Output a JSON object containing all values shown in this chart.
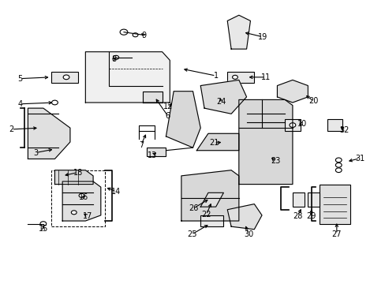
{
  "bg_color": "#ffffff",
  "line_color": "#000000",
  "figsize": [
    4.89,
    3.6
  ],
  "dpi": 100,
  "label_positions": {
    "1": [
      0.56,
      0.735,
      0.47,
      0.76
    ],
    "2": [
      0.027,
      0.545,
      0.1,
      0.55
    ],
    "3": [
      0.09,
      0.462,
      0.14,
      0.475
    ],
    "4": [
      0.05,
      0.635,
      0.14,
      0.64
    ],
    "5": [
      0.05,
      0.725,
      0.13,
      0.73
    ],
    "6": [
      0.435,
      0.592,
      0.4,
      0.66
    ],
    "7": [
      0.365,
      0.49,
      0.38,
      0.535
    ],
    "8": [
      0.295,
      0.795,
      0.3,
      0.8
    ],
    "9": [
      0.373,
      0.878,
      0.36,
      0.89
    ],
    "10": [
      0.785,
      0.565,
      0.77,
      0.56
    ],
    "11": [
      0.69,
      0.73,
      0.64,
      0.73
    ],
    "12": [
      0.435,
      0.625,
      0.45,
      0.64
    ],
    "13": [
      0.395,
      0.453,
      0.41,
      0.467
    ],
    "14": [
      0.3,
      0.325,
      0.27,
      0.34
    ],
    "15": [
      0.11,
      0.192,
      0.11,
      0.21
    ],
    "16": [
      0.215,
      0.305,
      0.22,
      0.31
    ],
    "17": [
      0.225,
      0.237,
      0.21,
      0.25
    ],
    "18": [
      0.2,
      0.392,
      0.16,
      0.38
    ],
    "19": [
      0.682,
      0.873,
      0.63,
      0.89
    ],
    "20": [
      0.815,
      0.645,
      0.79,
      0.67
    ],
    "21": [
      0.555,
      0.496,
      0.58,
      0.5
    ],
    "22": [
      0.535,
      0.242,
      0.55,
      0.29
    ],
    "23": [
      0.715,
      0.432,
      0.7,
      0.45
    ],
    "24": [
      0.573,
      0.643,
      0.57,
      0.665
    ],
    "25": [
      0.498,
      0.173,
      0.545,
      0.21
    ],
    "26": [
      0.502,
      0.265,
      0.545,
      0.3
    ],
    "27": [
      0.875,
      0.173,
      0.875,
      0.22
    ],
    "28": [
      0.773,
      0.237,
      0.785,
      0.27
    ],
    "29": [
      0.808,
      0.237,
      0.81,
      0.27
    ],
    "30": [
      0.646,
      0.172,
      0.635,
      0.21
    ],
    "31": [
      0.935,
      0.442,
      0.9,
      0.43
    ],
    "32": [
      0.894,
      0.543,
      0.88,
      0.56
    ]
  }
}
